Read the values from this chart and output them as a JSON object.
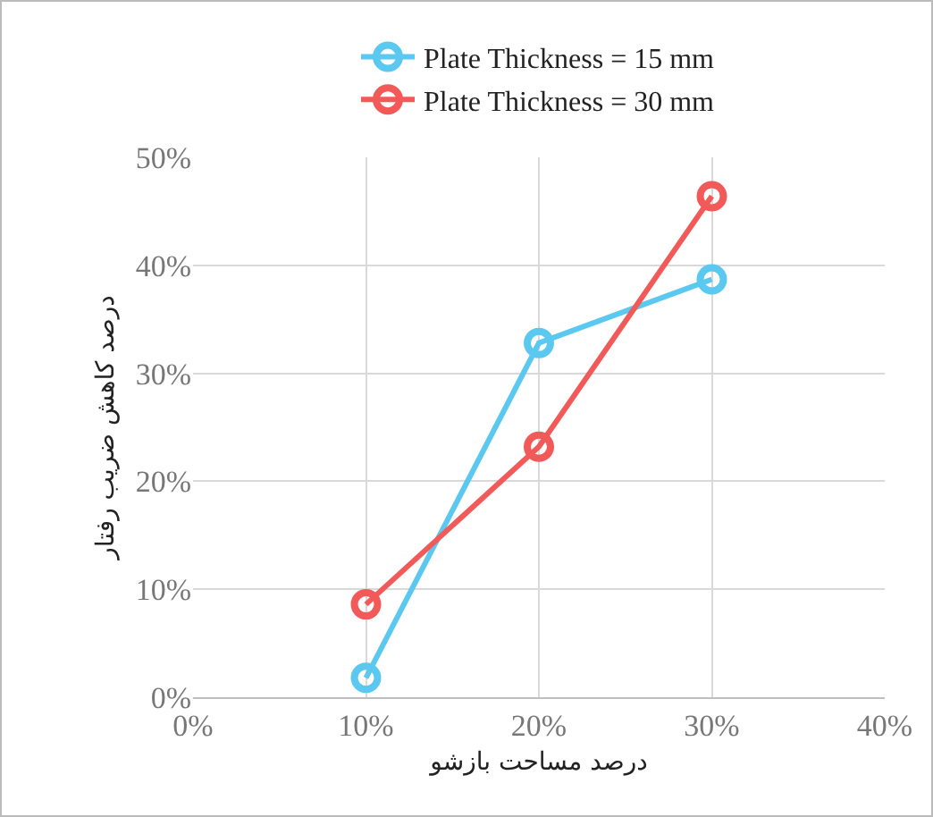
{
  "chart_data": {
    "type": "line",
    "xlabel": "درصد مساحت بازشو",
    "ylabel": "درصد کاهش ضریب رفتار",
    "x": [
      10,
      20,
      30
    ],
    "series": [
      {
        "name": "Plate Thickness = 15 mm",
        "color": "#5bc8f0",
        "values": [
          1.8,
          32.8,
          38.7
        ]
      },
      {
        "name": "Plate Thickness = 30 mm",
        "color": "#f25a5a",
        "values": [
          8.6,
          23.2,
          46.4
        ]
      }
    ],
    "xlim": [
      0,
      40
    ],
    "xticks": [
      {
        "value": 0,
        "label": "0%"
      },
      {
        "value": 10,
        "label": "10%"
      },
      {
        "value": 20,
        "label": "20%"
      },
      {
        "value": 30,
        "label": "30%"
      },
      {
        "value": 40,
        "label": "40%"
      }
    ],
    "ylim": [
      0,
      50
    ],
    "yticks": [
      {
        "value": 0,
        "label": "0%"
      },
      {
        "value": 10,
        "label": "10%"
      },
      {
        "value": 20,
        "label": "20%"
      },
      {
        "value": 30,
        "label": "30%"
      },
      {
        "value": 40,
        "label": "40%"
      },
      {
        "value": 50,
        "label": "50%"
      }
    ],
    "grid": true,
    "legend": "top",
    "marker": "circle",
    "line_style": "solid"
  }
}
